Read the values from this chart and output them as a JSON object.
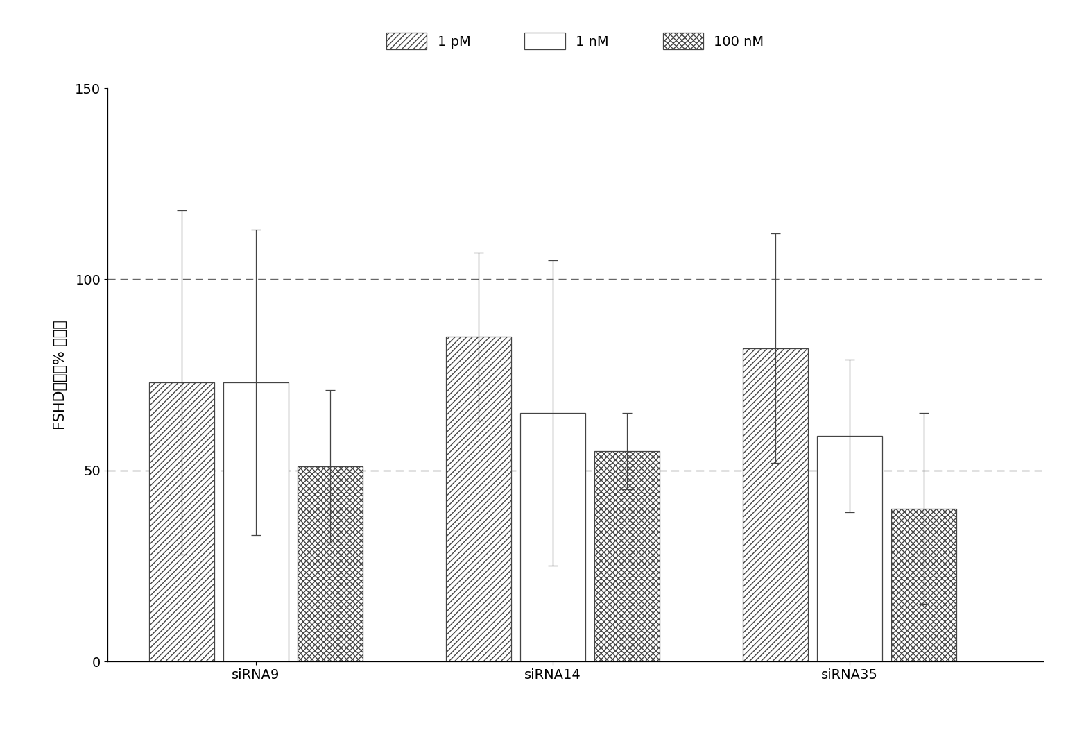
{
  "groups": [
    "siRNA9",
    "siRNA14",
    "siRNA35"
  ],
  "series": [
    "1 pM",
    "1 nM",
    "100 nM"
  ],
  "values": [
    [
      73,
      73,
      51
    ],
    [
      85,
      65,
      55
    ],
    [
      82,
      59,
      40
    ]
  ],
  "errors_upper": [
    [
      45,
      40,
      20
    ],
    [
      22,
      40,
      10
    ],
    [
      30,
      20,
      25
    ]
  ],
  "errors_lower": [
    [
      45,
      40,
      20
    ],
    [
      22,
      40,
      10
    ],
    [
      30,
      20,
      25
    ]
  ],
  "ylabel": "FSHD复合（% 对照）",
  "ylim": [
    0,
    150
  ],
  "yticks": [
    0,
    50,
    100,
    150
  ],
  "hlines": [
    50,
    100
  ],
  "bar_width": 0.22,
  "group_centers": [
    1.0,
    2.0,
    3.0
  ],
  "background_color": "#ffffff",
  "bar_edge_color": "#444444",
  "bar_facecolor": "#ffffff",
  "hatch_patterns": [
    "////",
    "",
    "xxxx"
  ],
  "legend_labels": [
    "1 pM",
    "1 nM",
    "100 nM"
  ],
  "axis_fontsize": 15,
  "tick_fontsize": 14,
  "legend_fontsize": 14,
  "xlim": [
    0.5,
    3.65
  ]
}
